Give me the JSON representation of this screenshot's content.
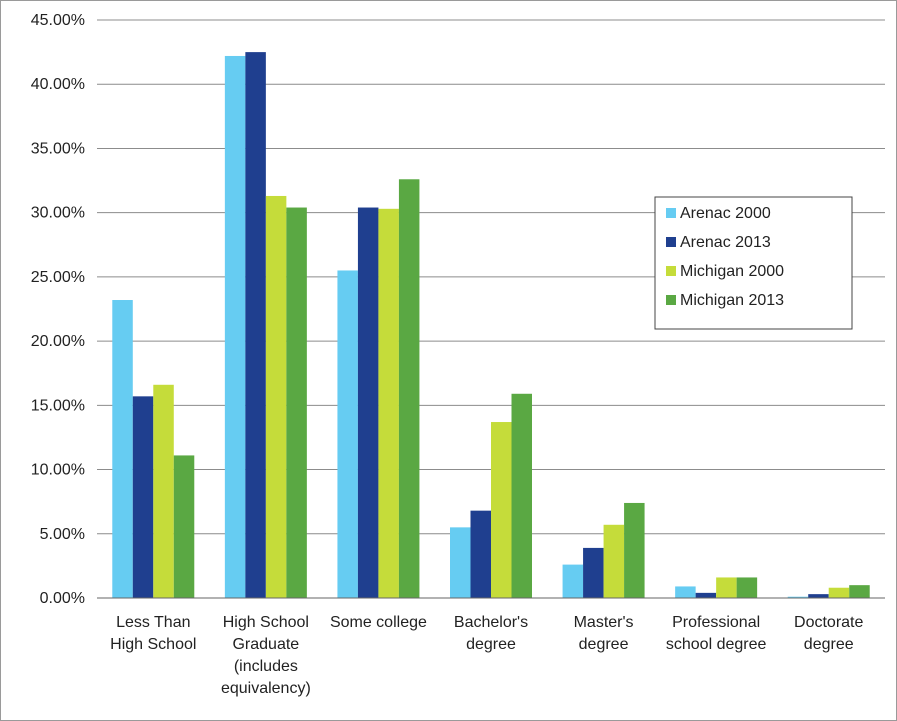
{
  "chart_data": {
    "type": "bar",
    "title": "",
    "xlabel": "",
    "ylabel": "",
    "ylim": [
      0,
      45
    ],
    "y_ticks": [
      "0.00%",
      "5.00%",
      "10.00%",
      "15.00%",
      "20.00%",
      "25.00%",
      "30.00%",
      "35.00%",
      "40.00%",
      "45.00%"
    ],
    "grid": true,
    "legend_position": "right",
    "categories": [
      [
        "Less Than",
        "High School"
      ],
      [
        "High School",
        "Graduate",
        "(includes",
        "equivalency)"
      ],
      [
        "Some college"
      ],
      [
        "Bachelor's",
        "degree"
      ],
      [
        "Master's",
        "degree"
      ],
      [
        "Professional",
        "school degree"
      ],
      [
        "Doctorate",
        "degree"
      ]
    ],
    "series": [
      {
        "name": "Arenac 2000",
        "color": "#66ccf2",
        "values": [
          23.2,
          42.2,
          25.5,
          5.5,
          2.6,
          0.9,
          0.1
        ]
      },
      {
        "name": "Arenac 2013",
        "color": "#1f3f8f",
        "values": [
          15.7,
          42.5,
          30.4,
          6.8,
          3.9,
          0.4,
          0.3
        ]
      },
      {
        "name": "Michigan 2000",
        "color": "#c5dc3a",
        "values": [
          16.6,
          31.3,
          30.3,
          13.7,
          5.7,
          1.6,
          0.8
        ]
      },
      {
        "name": "Michigan 2013",
        "color": "#5aa843",
        "values": [
          11.1,
          30.4,
          32.6,
          15.9,
          7.4,
          1.6,
          1.0
        ]
      }
    ]
  }
}
